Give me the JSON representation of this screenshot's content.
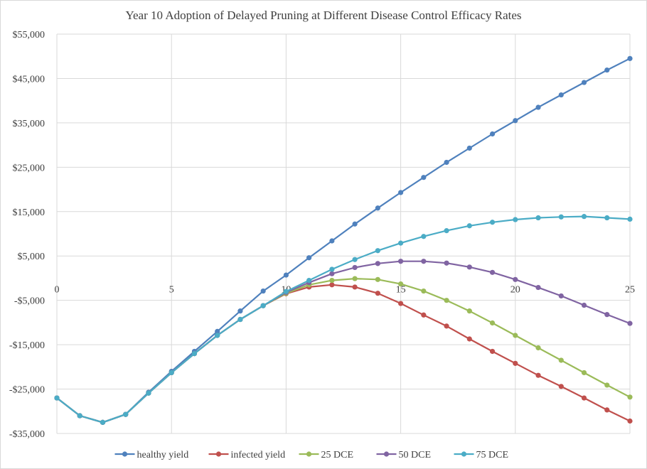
{
  "chart_data": {
    "type": "line",
    "title": "Year 10 Adoption of Delayed  Pruning  at Different  Disease  Control Efficacy  Rates",
    "xlabel": "",
    "ylabel": "",
    "xlim": [
      0,
      25
    ],
    "ylim": [
      -35000,
      55000
    ],
    "x_ticks": [
      0,
      5,
      10,
      15,
      20,
      25
    ],
    "y_ticks": [
      -35000,
      -25000,
      -15000,
      -5000,
      5000,
      15000,
      25000,
      35000,
      45000,
      55000
    ],
    "y_tick_labels": [
      "-$35,000",
      "-$25,000",
      "-$15,000",
      "-$5,000",
      "$5,000",
      "$15,000",
      "$25,000",
      "$35,000",
      "$45,000",
      "$55,000"
    ],
    "grid": true,
    "legend_position": "bottom",
    "x": [
      0,
      1,
      2,
      3,
      4,
      5,
      6,
      7,
      8,
      9,
      10,
      11,
      12,
      13,
      14,
      15,
      16,
      17,
      18,
      19,
      20,
      21,
      22,
      23,
      24,
      25
    ],
    "series": [
      {
        "name": "healthy yield",
        "color": "#4f81bd",
        "values": [
          -27000,
          -31000,
          -32500,
          -30700,
          -25700,
          -21000,
          -16500,
          -12000,
          -7400,
          -2900,
          700,
          4600,
          8400,
          12200,
          15800,
          19300,
          22700,
          26100,
          29300,
          32500,
          35500,
          38500,
          41300,
          44100,
          46900,
          49500
        ]
      },
      {
        "name": "infected yield",
        "color": "#c0504d",
        "values": [
          -27000,
          -31000,
          -32500,
          -30700,
          -25900,
          -21300,
          -17000,
          -12900,
          -9300,
          -6200,
          -3500,
          -2000,
          -1500,
          -2000,
          -3400,
          -5700,
          -8300,
          -10800,
          -13700,
          -16500,
          -19200,
          -21900,
          -24400,
          -27000,
          -29700,
          -32200
        ]
      },
      {
        "name": "25 DCE",
        "color": "#9bbb59",
        "values": [
          -27000,
          -31000,
          -32500,
          -30700,
          -25900,
          -21300,
          -17000,
          -12900,
          -9300,
          -6200,
          -3400,
          -1500,
          -500,
          -100,
          -300,
          -1300,
          -2900,
          -5000,
          -7400,
          -10100,
          -12900,
          -15700,
          -18500,
          -21300,
          -24100,
          -26800
        ]
      },
      {
        "name": "50 DCE",
        "color": "#8064a2",
        "values": [
          -27000,
          -31000,
          -32500,
          -30700,
          -25900,
          -21300,
          -17000,
          -12900,
          -9300,
          -6200,
          -3200,
          -1000,
          1000,
          2400,
          3300,
          3800,
          3800,
          3400,
          2500,
          1300,
          -300,
          -2100,
          -4000,
          -6100,
          -8200,
          -10200
        ]
      },
      {
        "name": "75 DCE",
        "color": "#4bacc6",
        "values": [
          -27000,
          -31000,
          -32500,
          -30700,
          -25900,
          -21300,
          -17000,
          -12900,
          -9300,
          -6200,
          -3000,
          -500,
          2000,
          4200,
          6200,
          7900,
          9400,
          10700,
          11800,
          12600,
          13200,
          13600,
          13800,
          13900,
          13600,
          13300
        ]
      }
    ]
  }
}
